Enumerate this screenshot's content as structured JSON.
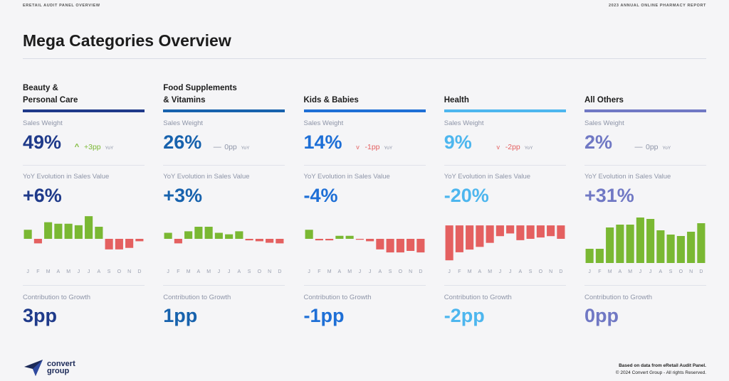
{
  "header": {
    "left": "ERETAIL AUDIT PANEL OVERVIEW",
    "right": "2023 ANNUAL ONLINE PHARMACY REPORT"
  },
  "page_title": "Mega Categories Overview",
  "labels": {
    "sales_weight": "Sales Weight",
    "yoy_evolution": "YoY Evolution in Sales Value",
    "contribution": "Contribution to Growth",
    "yoy": "YoY"
  },
  "colors": {
    "positive": "#7ab833",
    "negative": "#e46060",
    "neutral": "#8e95a8"
  },
  "chart_data": [
    {
      "type": "bar",
      "name": "Beauty & Personal Care",
      "color": "#1f3a8a",
      "months": [
        "J",
        "F",
        "M",
        "A",
        "M",
        "J",
        "J",
        "A",
        "S",
        "O",
        "N",
        "D"
      ],
      "values": [
        3,
        -1.5,
        5.5,
        5,
        5,
        4.5,
        7.5,
        4,
        -3.5,
        -3.5,
        -3,
        -0.8
      ],
      "ylim": [
        -8,
        8
      ]
    },
    {
      "type": "bar",
      "name": "Food Supplements & Vitamins",
      "color": "#1762ad",
      "months": [
        "J",
        "F",
        "M",
        "A",
        "M",
        "J",
        "J",
        "A",
        "S",
        "O",
        "N",
        "D"
      ],
      "values": [
        2,
        -1.5,
        2.5,
        4,
        4,
        2,
        1.5,
        2.5,
        -0.5,
        -0.8,
        -1.3,
        -1.5
      ],
      "ylim": [
        -8,
        8
      ]
    },
    {
      "type": "bar",
      "name": "Kids & Babies",
      "color": "#1e6fd6",
      "months": [
        "J",
        "F",
        "M",
        "A",
        "M",
        "J",
        "J",
        "A",
        "S",
        "O",
        "N",
        "D"
      ],
      "values": [
        3,
        -0.5,
        -0.5,
        1,
        1,
        -0.3,
        -0.8,
        -3.5,
        -4.5,
        -4.5,
        -4,
        -4.5
      ],
      "ylim": [
        -8,
        8
      ]
    },
    {
      "type": "bar",
      "name": "Health",
      "color": "#4db6ee",
      "months": [
        "J",
        "F",
        "M",
        "A",
        "M",
        "J",
        "J",
        "A",
        "S",
        "O",
        "N",
        "D"
      ],
      "values": [
        -13,
        -10,
        -9,
        -8,
        -6.5,
        -4,
        -3,
        -5.5,
        -5,
        -4.5,
        -4,
        -5
      ],
      "ylim": [
        -14,
        4
      ]
    },
    {
      "type": "bar",
      "name": "All Others",
      "color": "#7078c4",
      "months": [
        "J",
        "F",
        "M",
        "A",
        "M",
        "J",
        "J",
        "A",
        "S",
        "O",
        "N",
        "D"
      ],
      "values": [
        10,
        10,
        25,
        27,
        27,
        32,
        31,
        23,
        20,
        19,
        22,
        28
      ],
      "ylim": [
        0,
        34
      ]
    }
  ],
  "categories": [
    {
      "name": "Beauty &\nPersonal Care",
      "color": "#1f3a8a",
      "sales_weight": "49%",
      "delta_dir": "up",
      "delta": "+3pp",
      "yoy_evolution": "+6%",
      "contribution": "3pp"
    },
    {
      "name": "Food Supplements\n& Vitamins",
      "color": "#1762ad",
      "sales_weight": "26%",
      "delta_dir": "flat",
      "delta": "0pp",
      "yoy_evolution": "+3%",
      "contribution": "1pp"
    },
    {
      "name": "Kids & Babies",
      "color": "#1e6fd6",
      "sales_weight": "14%",
      "delta_dir": "down",
      "delta": "-1pp",
      "yoy_evolution": "-4%",
      "contribution": "-1pp"
    },
    {
      "name": "Health",
      "color": "#4db6ee",
      "sales_weight": "9%",
      "delta_dir": "down",
      "delta": "-2pp",
      "yoy_evolution": "-20%",
      "contribution": "-2pp"
    },
    {
      "name": "All Others",
      "color": "#7078c4",
      "sales_weight": "2%",
      "delta_dir": "flat",
      "delta": "0pp",
      "yoy_evolution": "+31%",
      "contribution": "0pp"
    }
  ],
  "logo": {
    "line1": "convert",
    "line2": "group"
  },
  "footer": {
    "line1": "Based on data from eRetail Audit Panel.",
    "line2": "© 2024 Convert Group - All rights Reserved."
  }
}
